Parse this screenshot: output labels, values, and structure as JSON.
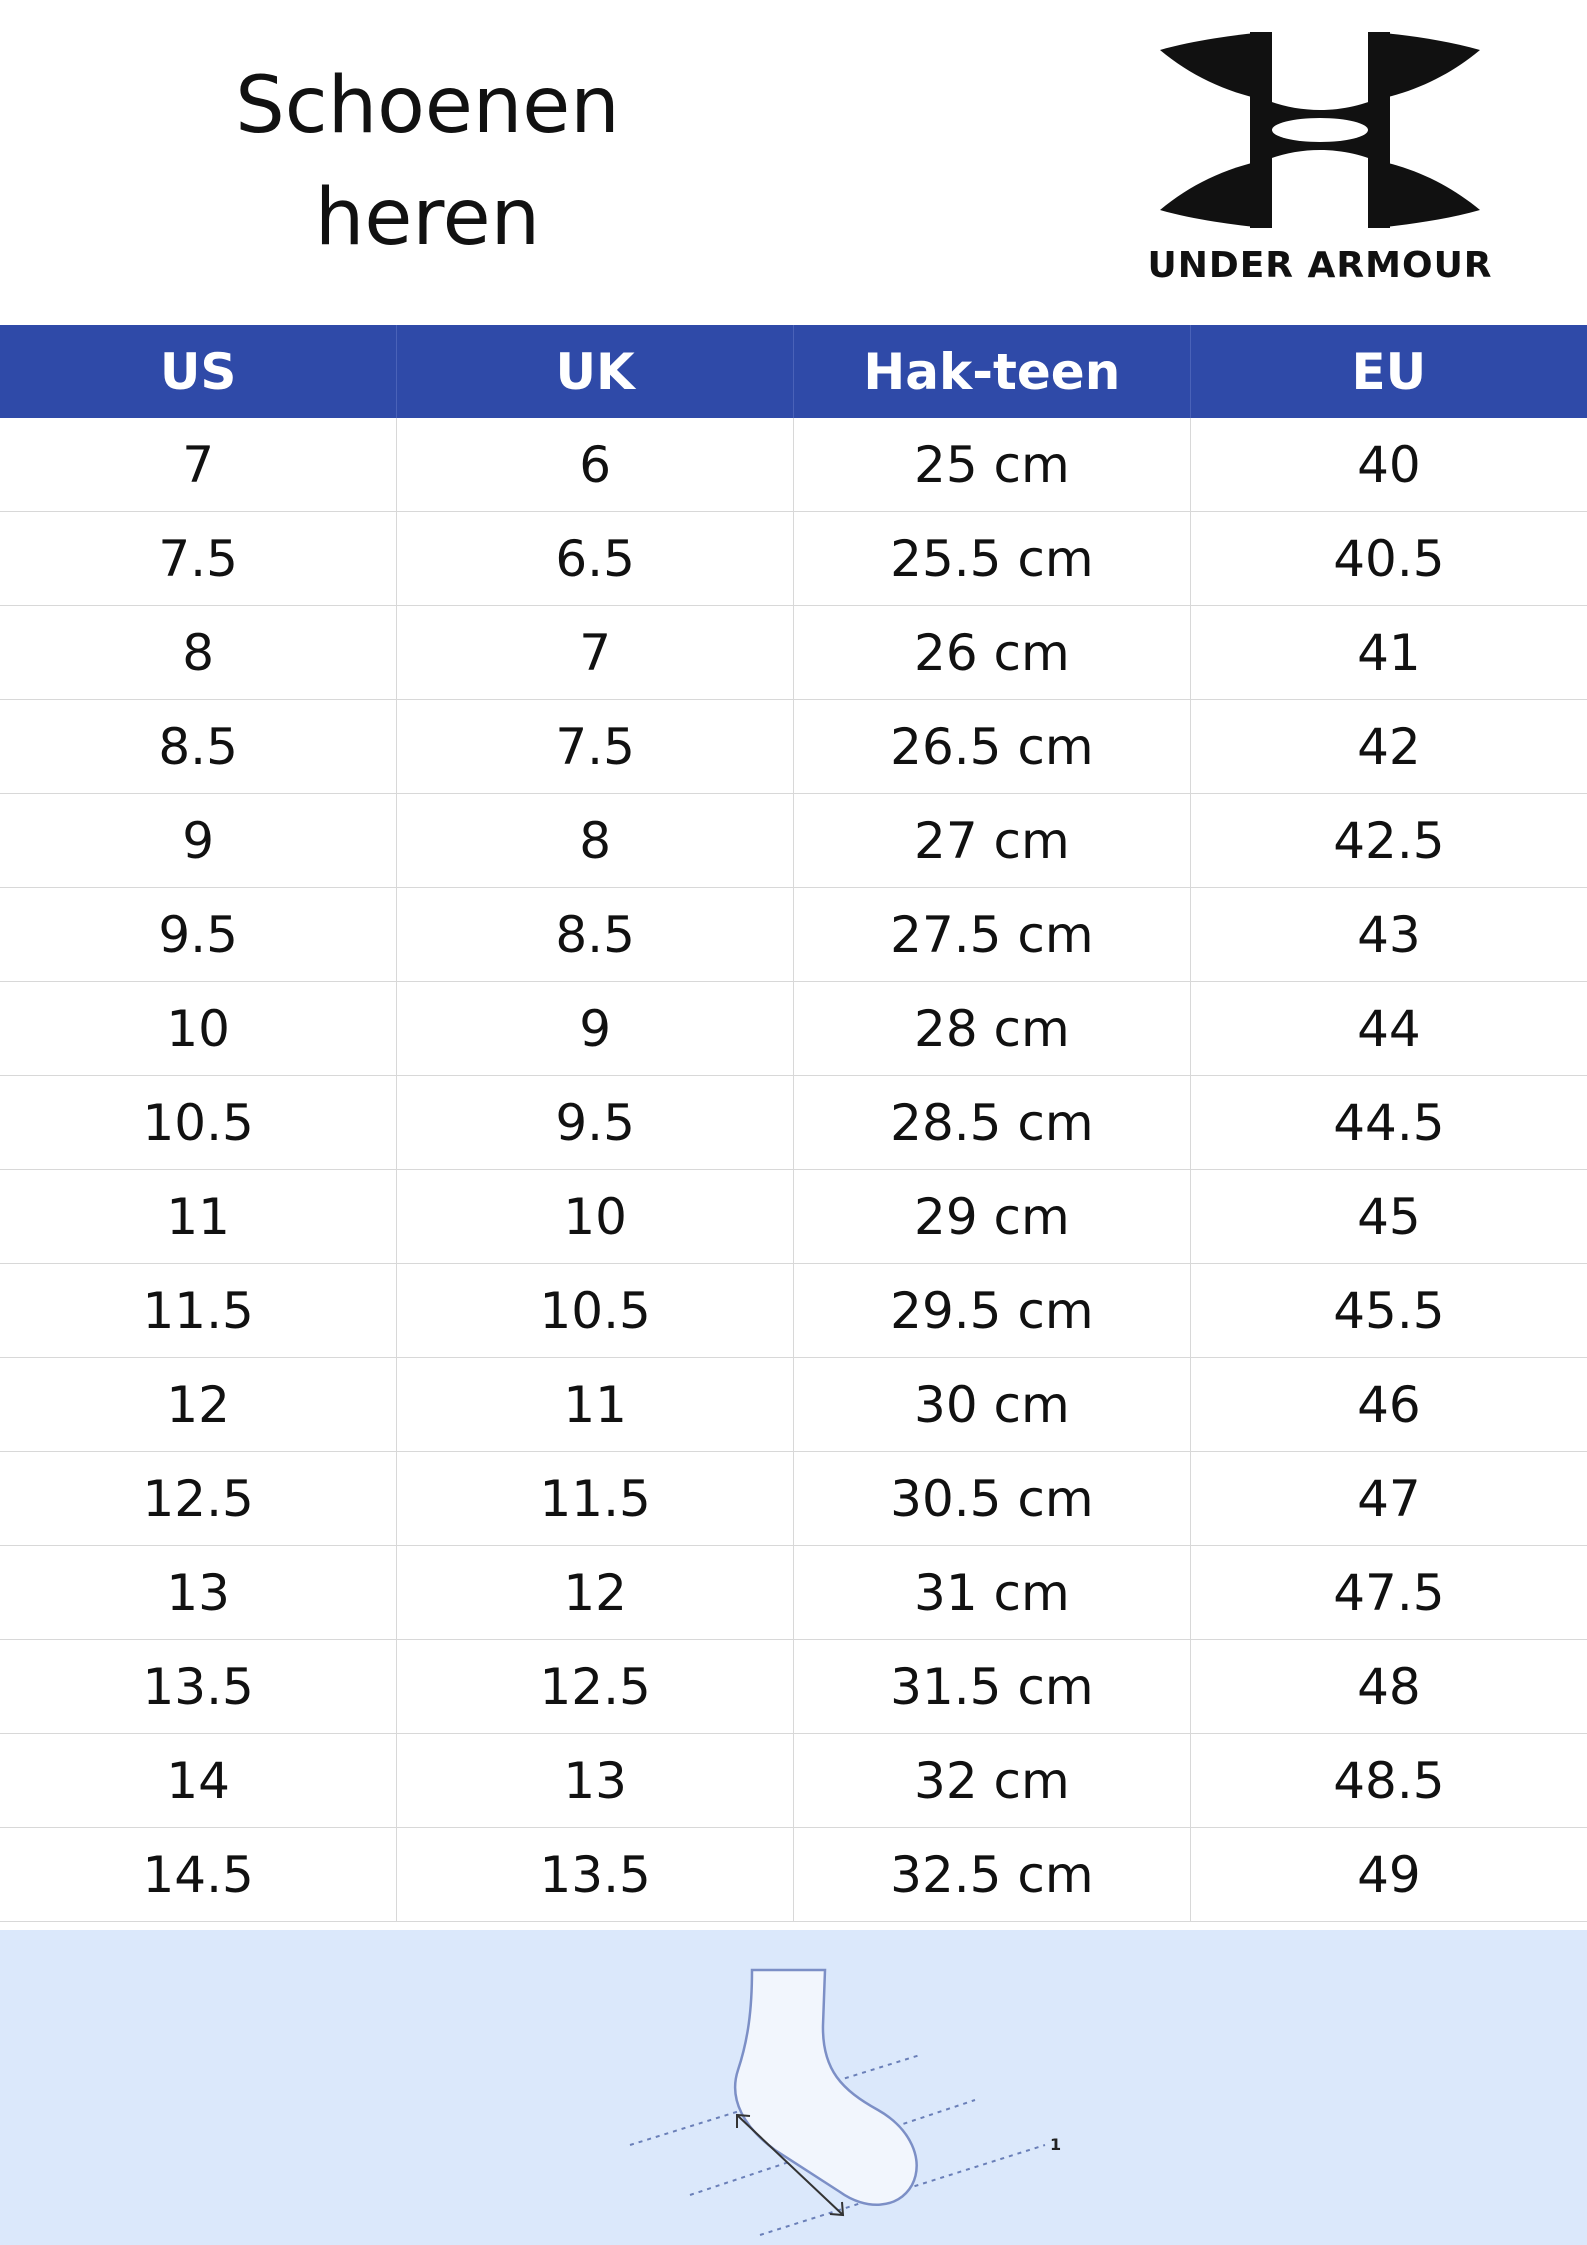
{
  "title": {
    "line1": "Schoenen",
    "line2": "heren"
  },
  "brand": {
    "name": "UNDER ARMOUR"
  },
  "colors": {
    "header_bg": "#2f4aa8",
    "illustration_bg": "#dbe8fb"
  },
  "table": {
    "columns": [
      "US",
      "UK",
      "Hak-teen",
      "EU"
    ],
    "rows": [
      [
        "7",
        "6",
        "25 cm",
        "40"
      ],
      [
        "7.5",
        "6.5",
        "25.5 cm",
        "40.5"
      ],
      [
        "8",
        "7",
        "26 cm",
        "41"
      ],
      [
        "8.5",
        "7.5",
        "26.5 cm",
        "42"
      ],
      [
        "9",
        "8",
        "27 cm",
        "42.5"
      ],
      [
        "9.5",
        "8.5",
        "27.5 cm",
        "43"
      ],
      [
        "10",
        "9",
        "28 cm",
        "44"
      ],
      [
        "10.5",
        "9.5",
        "28.5 cm",
        "44.5"
      ],
      [
        "11",
        "10",
        "29 cm",
        "45"
      ],
      [
        "11.5",
        "10.5",
        "29.5 cm",
        "45.5"
      ],
      [
        "12",
        "11",
        "30 cm",
        "46"
      ],
      [
        "12.5",
        "11.5",
        "30.5 cm",
        "47"
      ],
      [
        "13",
        "12",
        "31 cm",
        "47.5"
      ],
      [
        "13.5",
        "12.5",
        "31.5 cm",
        "48"
      ],
      [
        "14",
        "13",
        "32 cm",
        "48.5"
      ],
      [
        "14.5",
        "13.5",
        "32.5 cm",
        "49"
      ]
    ]
  },
  "illustration": {
    "icon": "foot-measure-icon",
    "marker": "1"
  }
}
